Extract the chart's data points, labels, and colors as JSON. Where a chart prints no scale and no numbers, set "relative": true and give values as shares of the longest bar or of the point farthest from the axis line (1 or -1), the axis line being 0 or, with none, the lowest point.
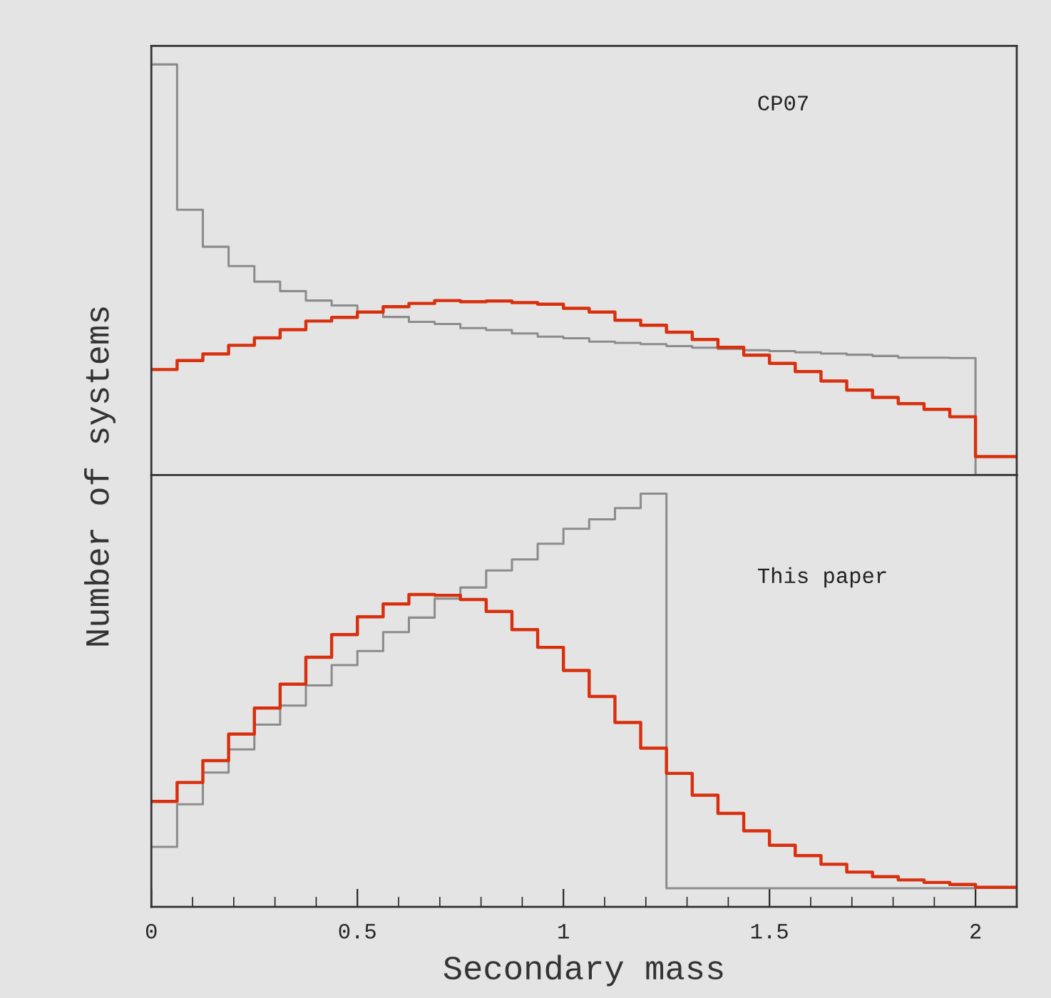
{
  "chart_data": [
    {
      "type": "step",
      "relative": true,
      "ylabel": "Number of systems",
      "annotations": [
        "CP07"
      ],
      "xlim": [
        0,
        2.1
      ],
      "tick_labels": false,
      "grid": false,
      "xticks": [
        0,
        0.5,
        1,
        1.5,
        2
      ],
      "x": [
        0,
        0.0625,
        0.125,
        0.1875,
        0.25,
        0.3125,
        0.375,
        0.4375,
        0.5,
        0.5625,
        0.625,
        0.6875,
        0.75,
        0.8125,
        0.875,
        0.9375,
        1,
        1.0625,
        1.125,
        1.1875,
        1.25,
        1.3125,
        1.375,
        1.4375,
        1.5,
        1.5625,
        1.625,
        1.6875,
        1.75,
        1.8125,
        1.875,
        1.9375,
        2,
        2.1
      ],
      "series": [
        {
          "color": "#8c8c8c",
          "values": [
            1.0,
            0.646,
            0.556,
            0.509,
            0.471,
            0.448,
            0.425,
            0.413,
            0.397,
            0.385,
            0.373,
            0.368,
            0.358,
            0.353,
            0.345,
            0.337,
            0.333,
            0.325,
            0.322,
            0.319,
            0.314,
            0.31,
            0.307,
            0.304,
            0.302,
            0.299,
            0.296,
            0.293,
            0.29,
            0.286,
            0.286,
            0.285,
            0,
            0
          ]
        },
        {
          "color": "#d8300e",
          "values": [
            0.257,
            0.279,
            0.295,
            0.316,
            0.334,
            0.354,
            0.375,
            0.384,
            0.397,
            0.41,
            0.418,
            0.425,
            0.422,
            0.424,
            0.42,
            0.416,
            0.406,
            0.397,
            0.377,
            0.365,
            0.348,
            0.33,
            0.311,
            0.292,
            0.272,
            0.252,
            0.229,
            0.207,
            0.189,
            0.174,
            0.16,
            0.142,
            0.045,
            0.045
          ]
        }
      ]
    },
    {
      "type": "step",
      "relative": true,
      "xlabel": "Secondary mass",
      "annotations": [
        "This paper"
      ],
      "xlim": [
        0,
        2.1
      ],
      "grid": false,
      "xticks": [
        0,
        {
          "value": 0.1,
          "label": null
        },
        {
          "value": 0.2,
          "label": null
        },
        {
          "value": 0.3,
          "label": null
        },
        {
          "value": 0.4,
          "label": null
        },
        0.5,
        {
          "value": 0.6,
          "label": null
        },
        {
          "value": 0.7,
          "label": null
        },
        {
          "value": 0.8,
          "label": null
        },
        {
          "value": 0.9,
          "label": null
        },
        1,
        {
          "value": 1.1,
          "label": null
        },
        {
          "value": 1.2,
          "label": null
        },
        {
          "value": 1.3,
          "label": null
        },
        {
          "value": 1.4,
          "label": null
        },
        1.5,
        {
          "value": 1.6,
          "label": null
        },
        {
          "value": 1.7,
          "label": null
        },
        {
          "value": 1.8,
          "label": null
        },
        {
          "value": 1.9,
          "label": null
        },
        2
      ],
      "x": [
        0,
        0.0625,
        0.125,
        0.1875,
        0.25,
        0.3125,
        0.375,
        0.4375,
        0.5,
        0.5625,
        0.625,
        0.6875,
        0.75,
        0.8125,
        0.875,
        0.9375,
        1,
        1.0625,
        1.125,
        1.1875,
        1.25,
        1.3125,
        1.375,
        1.4375,
        1.5,
        1.5625,
        1.625,
        1.6875,
        1.75,
        1.8125,
        1.875,
        1.9375,
        2,
        2.1
      ],
      "series": [
        {
          "color": "#8c8c8c",
          "values": [
            0.145,
            0.248,
            0.325,
            0.381,
            0.441,
            0.487,
            0.536,
            0.585,
            0.619,
            0.665,
            0.7,
            0.746,
            0.773,
            0.814,
            0.841,
            0.879,
            0.915,
            0.938,
            0.965,
            1.0,
            0.045,
            0.045,
            0.045,
            0.045,
            0.045,
            0.045,
            0.045,
            0.045,
            0.045,
            0.045,
            0.045,
            0.045,
            0.045,
            null
          ]
        },
        {
          "color": "#d8300e",
          "values": [
            0.255,
            0.301,
            0.354,
            0.418,
            0.481,
            0.539,
            0.604,
            0.659,
            0.702,
            0.733,
            0.756,
            0.754,
            0.744,
            0.715,
            0.671,
            0.628,
            0.572,
            0.509,
            0.446,
            0.384,
            0.323,
            0.27,
            0.226,
            0.184,
            0.149,
            0.124,
            0.103,
            0.084,
            0.073,
            0.065,
            0.059,
            0.054,
            0.047,
            0.047
          ]
        }
      ]
    }
  ]
}
